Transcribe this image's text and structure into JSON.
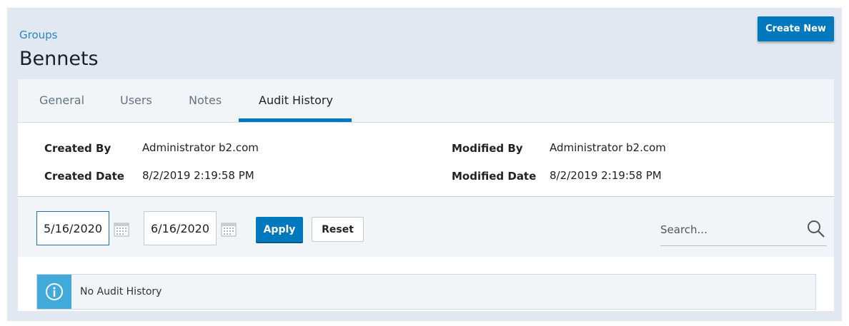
{
  "breadcrumb": "Groups",
  "title": "Bennets",
  "create_label": "Create New",
  "tabs": [
    {
      "label": "General"
    },
    {
      "label": "Users"
    },
    {
      "label": "Notes"
    },
    {
      "label": "Audit History"
    }
  ],
  "active_tab": "Audit History",
  "details": {
    "created_by_label": "Created By",
    "created_by": "Administrator b2.com",
    "created_date_label": "Created Date",
    "created_date": "8/2/2019 2:19:58 PM",
    "modified_by_label": "Modified By",
    "modified_by": "Administrator b2.com",
    "modified_date_label": "Modified Date",
    "modified_date": "8/2/2019 2:19:58 PM"
  },
  "filter": {
    "from": "5/16/2020",
    "to": "6/16/2020",
    "apply_label": "Apply",
    "reset_label": "Reset",
    "search_placeholder": "Search..."
  },
  "alert": {
    "icon": "info-icon",
    "message": "No Audit History"
  },
  "colors": {
    "accent": "#0078be",
    "info": "#42aadb",
    "background": "#e1e8f1"
  }
}
